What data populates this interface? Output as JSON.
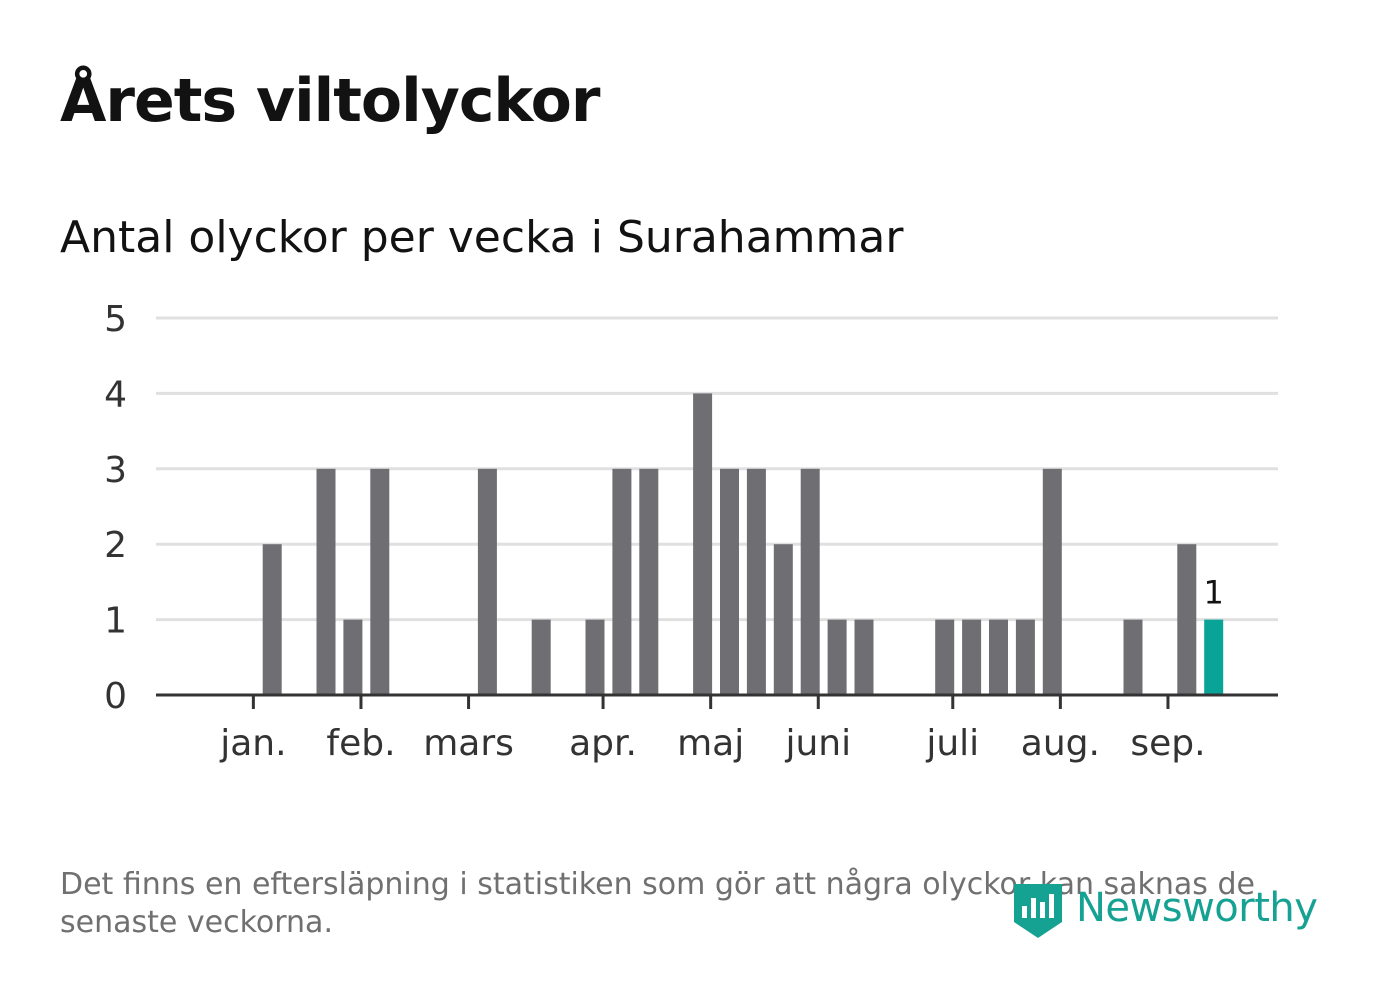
{
  "title": "Årets viltolyckor",
  "footnote": "Det finns en eftersläpning i statistiken som gör att några olyckor kan saknas de senaste veckorna.",
  "brand": {
    "name": "Newsworthy",
    "icon": "newsworthy-logo-icon",
    "color": "#16a293"
  },
  "colors": {
    "bar": "#6f6e73",
    "highlight": "#0aa398",
    "grid": "#e0e0e0",
    "axis": "#333333"
  },
  "chart_data": {
    "type": "bar",
    "title": "Antal olyckor per vecka i Surahammar",
    "xlabel": "",
    "ylabel": "",
    "ylim": [
      0,
      5
    ],
    "yticks": [
      "0",
      "1",
      "2",
      "3",
      "4",
      "5"
    ],
    "grid": true,
    "weeks": [
      1,
      2,
      3,
      4,
      5,
      6,
      7,
      8,
      9,
      10,
      11,
      12,
      13,
      14,
      15,
      16,
      17,
      18,
      19,
      20,
      21,
      22,
      23,
      24,
      25,
      26,
      27,
      28,
      29,
      30,
      31,
      32,
      33,
      34,
      35,
      36,
      37,
      38,
      39
    ],
    "values": [
      0,
      0,
      0,
      2,
      0,
      3,
      1,
      3,
      0,
      0,
      0,
      3,
      0,
      1,
      0,
      1,
      3,
      3,
      0,
      4,
      3,
      3,
      2,
      3,
      1,
      1,
      0,
      0,
      1,
      1,
      1,
      1,
      3,
      0,
      0,
      1,
      0,
      2,
      1
    ],
    "highlight_index": 38,
    "highlight_label": "1",
    "month_labels": [
      {
        "label": "jan.",
        "week": 3.3
      },
      {
        "label": "feb.",
        "week": 7.3
      },
      {
        "label": "mars",
        "week": 11.3
      },
      {
        "label": "apr.",
        "week": 16.3
      },
      {
        "label": "maj",
        "week": 20.3
      },
      {
        "label": "juni",
        "week": 24.3
      },
      {
        "label": "juli",
        "week": 29.3
      },
      {
        "label": "aug.",
        "week": 33.3
      },
      {
        "label": "sep.",
        "week": 37.3
      }
    ]
  }
}
